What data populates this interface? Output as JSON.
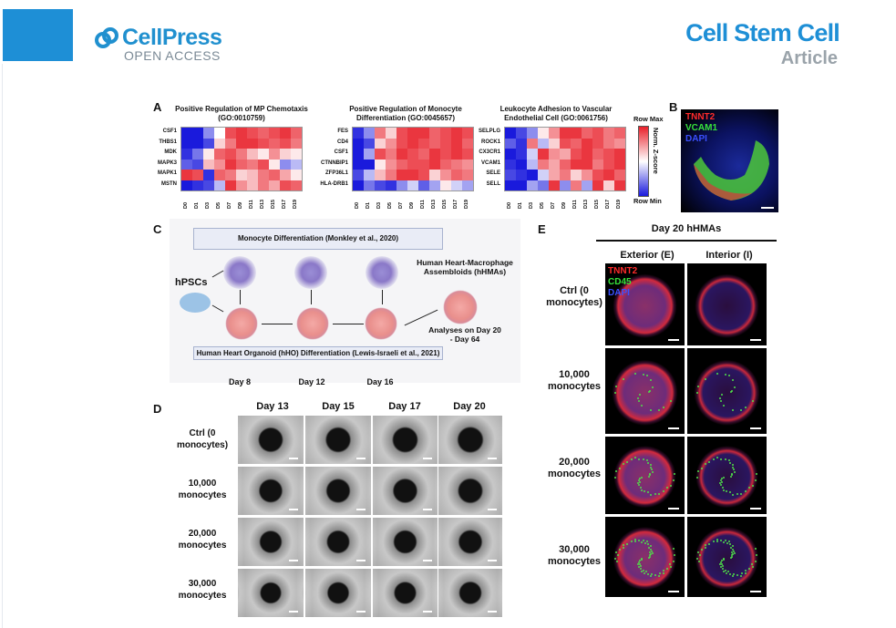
{
  "header": {
    "publisher": "CellPress",
    "open_access": "OPEN ACCESS",
    "journal": "Cell Stem Cell",
    "article_type": "Article"
  },
  "panelA": {
    "label": "A",
    "heatmaps": [
      {
        "title": "Positive Regulation of MP Chemotaxis (GO:0010759)",
        "genes": [
          "CSF1",
          "THBS1",
          "MDK",
          "MAPK3",
          "MAPK1",
          "MSTN"
        ],
        "cells": [
          [
            -1,
            -1,
            -0.5,
            0,
            0.8,
            0.9,
            0.8,
            0.7,
            0.8,
            0.9,
            0.7
          ],
          [
            -1,
            -1,
            -0.8,
            0.2,
            0.6,
            0.9,
            0.9,
            0.8,
            0.7,
            0.8,
            0.6
          ],
          [
            -0.9,
            -0.6,
            0.1,
            0.7,
            0.8,
            0.6,
            0.3,
            0.1,
            0.5,
            0.2,
            0.1
          ],
          [
            -0.7,
            -0.8,
            0.3,
            0.5,
            0.9,
            0.7,
            0.6,
            0.8,
            0.1,
            -0.5,
            -0.3
          ],
          [
            0.9,
            0.8,
            -0.9,
            0.7,
            0.6,
            0.2,
            0.3,
            0.6,
            0.7,
            0.4,
            0.1
          ],
          [
            -1,
            -0.9,
            -0.8,
            -0.3,
            0.9,
            0.5,
            0.3,
            0.6,
            0.4,
            0.8,
            0.7
          ]
        ]
      },
      {
        "title": "Positive Regulation of Monocyte Differentiation (GO:0045657)",
        "genes": [
          "FES",
          "CD4",
          "CSF1",
          "CTNNBIP1",
          "ZFP36L1",
          "HLA-DRB1"
        ],
        "cells": [
          [
            -0.9,
            -0.5,
            0.6,
            0.2,
            0.8,
            0.9,
            0.9,
            0.7,
            0.8,
            0.9,
            0.8
          ],
          [
            -1,
            -0.8,
            0.2,
            0.5,
            0.8,
            0.9,
            0.8,
            0.7,
            0.8,
            0.9,
            0.7
          ],
          [
            -1,
            -0.4,
            0.8,
            0.6,
            0.9,
            0.8,
            0.7,
            0.9,
            0.8,
            0.9,
            0.8
          ],
          [
            -1,
            -1,
            0.1,
            0.5,
            0.7,
            0.8,
            0.8,
            0.9,
            0.7,
            0.6,
            0.5
          ],
          [
            -0.8,
            -0.3,
            0.3,
            0.6,
            0.9,
            0.9,
            0.8,
            0.2,
            0.5,
            0.7,
            0.6
          ],
          [
            -1,
            -0.6,
            -0.8,
            -0.9,
            -0.5,
            -0.2,
            -0.7,
            -0.4,
            0.1,
            -0.2,
            -0.4
          ]
        ]
      },
      {
        "title": "Leukocyte Adhesion to Vascular Endothelial Cell (GO:0061756)",
        "genes": [
          "SELPLG",
          "ROCK1",
          "CX3CR1",
          "VCAM1",
          "SELE",
          "SELL"
        ],
        "cells": [
          [
            -1,
            -0.8,
            -0.5,
            0.1,
            0.5,
            0.9,
            0.9,
            0.7,
            0.8,
            0.6,
            0.7
          ],
          [
            -0.7,
            -0.9,
            0.6,
            -0.3,
            0.2,
            0.8,
            0.7,
            0.9,
            0.8,
            0.6,
            0.5
          ],
          [
            -1,
            -0.9,
            -0.2,
            0.9,
            0.5,
            0.4,
            0.8,
            0.9,
            0.7,
            0.8,
            0.9
          ],
          [
            -0.9,
            -1,
            -0.3,
            0.6,
            0.4,
            0.7,
            0.9,
            0.9,
            0.6,
            0.8,
            0.9
          ],
          [
            -0.8,
            -0.9,
            -1,
            -0.2,
            0.4,
            0.6,
            0.2,
            0.5,
            0.8,
            0.9,
            0.7
          ],
          [
            -1,
            -1,
            -0.4,
            -0.6,
            0.9,
            -0.5,
            0.6,
            -0.4,
            0.9,
            0.2,
            0.9
          ]
        ]
      }
    ],
    "days": [
      "D0",
      "D1",
      "D3",
      "D5",
      "D7",
      "D9",
      "D11",
      "D13",
      "D15",
      "D17",
      "D19"
    ],
    "legend": {
      "max": "Row Max",
      "min": "Row Min",
      "title": "Norm. Z-score"
    },
    "colors": {
      "high": "#e8202a",
      "mid": "#ffffff",
      "low": "#1a1adc"
    }
  },
  "panelB": {
    "label": "B",
    "channels": [
      {
        "name": "TNNT2",
        "color": "#ff2b2b"
      },
      {
        "name": "VCAM1",
        "color": "#37e23b"
      },
      {
        "name": "DAPI",
        "color": "#3a50ff"
      }
    ]
  },
  "panelC": {
    "label": "C",
    "top_box": "Monocyte Differentiation (Monkley et al., 2020)",
    "bottom_box": "Human Heart Organoid (hHO) Differentiation (Lewis-Israeli et al., 2021)",
    "source": "hPSCs",
    "days": [
      "Day 8",
      "Day 12",
      "Day 16"
    ],
    "result": "Human Heart-Macrophage Assembloids (hHMAs)",
    "analysis": "Analyses on Day 20 - Day 64"
  },
  "panelD": {
    "label": "D",
    "columns": [
      "Day 13",
      "Day 15",
      "Day 17",
      "Day 20"
    ],
    "rows": [
      "Ctrl (0 monocytes)",
      "10,000 monocytes",
      "20,000 monocytes",
      "30,000 monocytes"
    ]
  },
  "panelE": {
    "label": "E",
    "title": "Day 20 hHMAs",
    "columns": [
      "Exterior (E)",
      "Interior (I)"
    ],
    "rows": [
      "Ctrl (0 monocytes)",
      "10,000 monocytes",
      "20,000 monocytes",
      "30,000 monocytes"
    ],
    "channels": [
      {
        "name": "TNNT2",
        "color": "#ff2b2b"
      },
      {
        "name": "CD45",
        "color": "#37e23b"
      },
      {
        "name": "DAPI",
        "color": "#3a50ff"
      }
    ]
  }
}
